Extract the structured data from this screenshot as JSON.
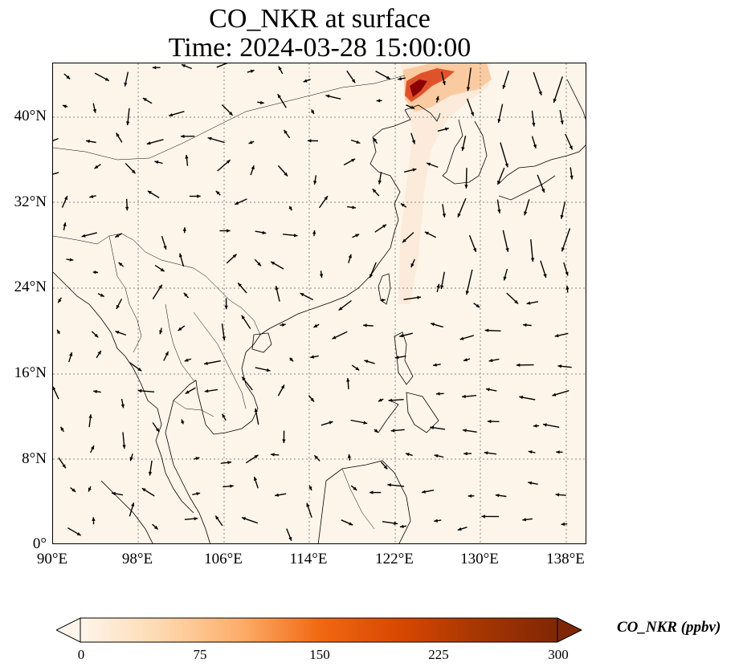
{
  "title_line1": "CO_NKR at surface",
  "title_line2": "Time: 2024-03-28 15:00:00",
  "lat_labels": [
    "40°N",
    "32°N",
    "24°N",
    "16°N",
    "8°N",
    "0°"
  ],
  "lon_labels": [
    "90°E",
    "98°E",
    "106°E",
    "114°E",
    "122°E",
    "130°E",
    "138°E"
  ],
  "colorbar": {
    "label": "CO_NKR (ppbv)",
    "ticks": [
      "0",
      "75",
      "150",
      "225",
      "300"
    ],
    "min": 0,
    "max": 300,
    "extend": "both",
    "colormap": [
      "#fff5eb",
      "#fdd9b0",
      "#fdae6b",
      "#f16913",
      "#d94801",
      "#a63603",
      "#7f2704"
    ]
  },
  "map": {
    "lon_range": [
      90,
      140
    ],
    "lat_range": [
      0,
      45
    ],
    "background_color": "#fdf5ea",
    "hotspot_color": "#8b0000",
    "gridlines": "dotted"
  }
}
